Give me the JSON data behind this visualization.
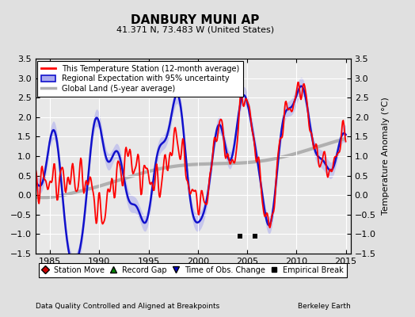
{
  "title": "DANBURY MUNI AP",
  "subtitle": "41.371 N, 73.483 W (United States)",
  "ylabel": "Temperature Anomaly (°C)",
  "xlabel_left": "Data Quality Controlled and Aligned at Breakpoints",
  "xlabel_right": "Berkeley Earth",
  "ylim": [
    -1.5,
    3.5
  ],
  "xlim": [
    1983.5,
    2015.5
  ],
  "yticks": [
    -1.5,
    -1.0,
    -0.5,
    0.0,
    0.5,
    1.0,
    1.5,
    2.0,
    2.5,
    3.0,
    3.5
  ],
  "xticks": [
    1985,
    1990,
    1995,
    2000,
    2005,
    2010,
    2015
  ],
  "bg_color": "#e0e0e0",
  "plot_bg_color": "#e8e8e8",
  "grid_color": "#ffffff",
  "line_red": "#ff0000",
  "line_blue": "#1111cc",
  "line_gray": "#b0b0b0",
  "fill_blue_color": "#aaaaee",
  "fill_blue_alpha": 0.55,
  "legend_items": [
    "This Temperature Station (12-month average)",
    "Regional Expectation with 95% uncertainty",
    "Global Land (5-year average)"
  ],
  "empirical_breaks": [
    2004.3,
    2005.8
  ],
  "figsize": [
    5.24,
    4.0
  ],
  "dpi": 100
}
